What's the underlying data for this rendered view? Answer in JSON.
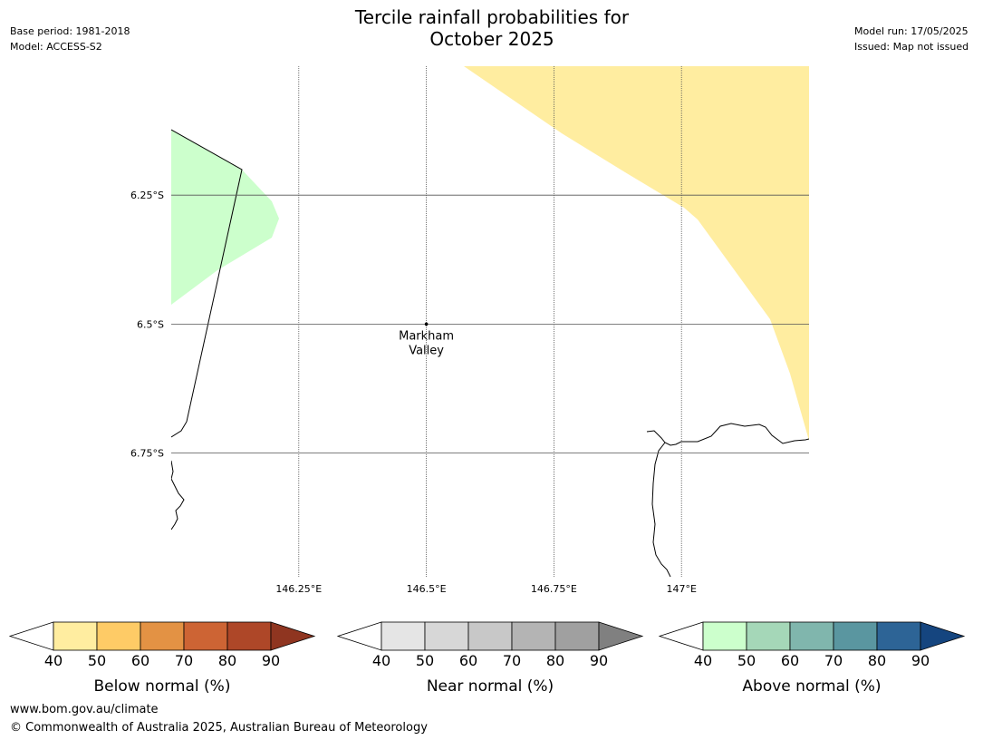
{
  "header": {
    "title_line1": "Tercile rainfall probabilities for",
    "title_line2": "October 2025",
    "base_period": "Base period: 1981-2018",
    "model": "Model: ACCESS-S2",
    "model_run": "Model run: 17/05/2025",
    "issued": "Issued: Map not issued"
  },
  "map": {
    "lat_labels": [
      "6.25°S",
      "6.5°S",
      "6.75°S"
    ],
    "lon_labels": [
      "146.25°E",
      "146.5°E",
      "146.75°E",
      "147°E"
    ],
    "place": {
      "name_line1": "Markham",
      "name_line2": "Valley",
      "lat": -6.5,
      "lon": 146.5
    },
    "extent": {
      "lon_min": 146.0,
      "lon_max": 147.25,
      "lat_min": -6.99,
      "lat_max": -6.0
    },
    "colors": {
      "below_normal_region": "#ffeda0",
      "above_normal_region": "#ccffcc",
      "graticule": "#555555",
      "coastline": "#000000"
    }
  },
  "colorbars": [
    {
      "name": "below-normal",
      "title": "Below normal (%)",
      "ticks": [
        "40",
        "50",
        "60",
        "70",
        "80",
        "90"
      ],
      "colors": [
        "#ffeda0",
        "#fecb66",
        "#e39244",
        "#cd6434",
        "#ae4728"
      ],
      "extend_color": "#8f3520"
    },
    {
      "name": "near-normal",
      "title": "Near normal (%)",
      "ticks": [
        "40",
        "50",
        "60",
        "70",
        "80",
        "90"
      ],
      "colors": [
        "#e5e5e5",
        "#d7d7d7",
        "#c8c8c8",
        "#b4b4b4",
        "#a0a0a0"
      ],
      "extend_color": "#808080"
    },
    {
      "name": "above-normal",
      "title": "Above normal (%)",
      "ticks": [
        "40",
        "50",
        "60",
        "70",
        "80",
        "90"
      ],
      "colors": [
        "#ccffcc",
        "#a5d7b8",
        "#80b6ad",
        "#5a96a0",
        "#2d6496"
      ],
      "extend_color": "#15457f"
    }
  ],
  "footer": {
    "url": "www.bom.gov.au/climate",
    "copyright": "© Commonwealth of Australia 2025, Australian Bureau of Meteorology"
  }
}
